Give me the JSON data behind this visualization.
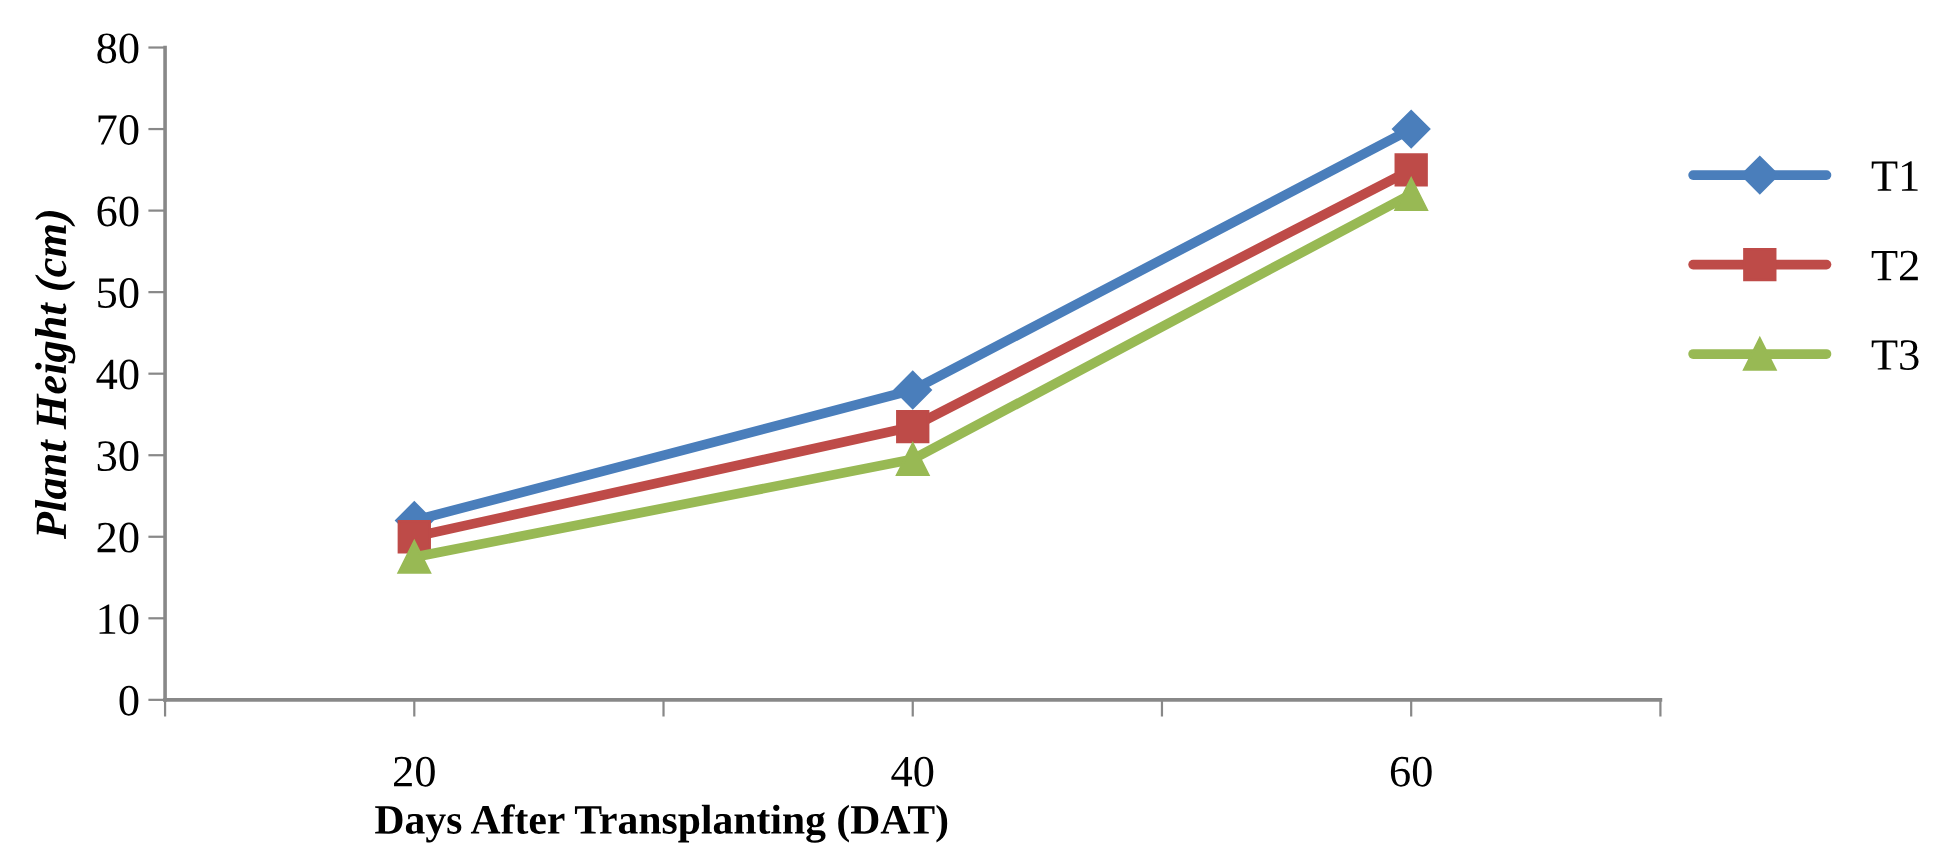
{
  "chart_data": {
    "type": "line",
    "xlabel": "Days After Transplanting (DAT)",
    "ylabel": "Plant Height (cm)",
    "x": [
      20,
      40,
      60
    ],
    "series": [
      {
        "name": "T1",
        "color": "#4a7ebb",
        "values": [
          22,
          38,
          70
        ],
        "marker": "diamond"
      },
      {
        "name": "T2",
        "color": "#be4b48",
        "values": [
          20,
          33.5,
          65
        ],
        "marker": "square"
      },
      {
        "name": "T3",
        "color": "#98b954",
        "values": [
          17.5,
          29.5,
          62
        ],
        "marker": "triangle"
      }
    ],
    "xlim": [
      10,
      70
    ],
    "xticks": [
      {
        "value": 10,
        "label": null
      },
      20,
      {
        "value": 30,
        "label": null
      },
      40,
      {
        "value": 50,
        "label": null
      },
      60,
      {
        "value": 70,
        "label": null
      }
    ],
    "ylim": [
      0,
      80
    ],
    "yticks": [
      0,
      10,
      20,
      30,
      40,
      50,
      60,
      70,
      80
    ],
    "grid": false,
    "legend": "right",
    "line_style": "solid"
  }
}
